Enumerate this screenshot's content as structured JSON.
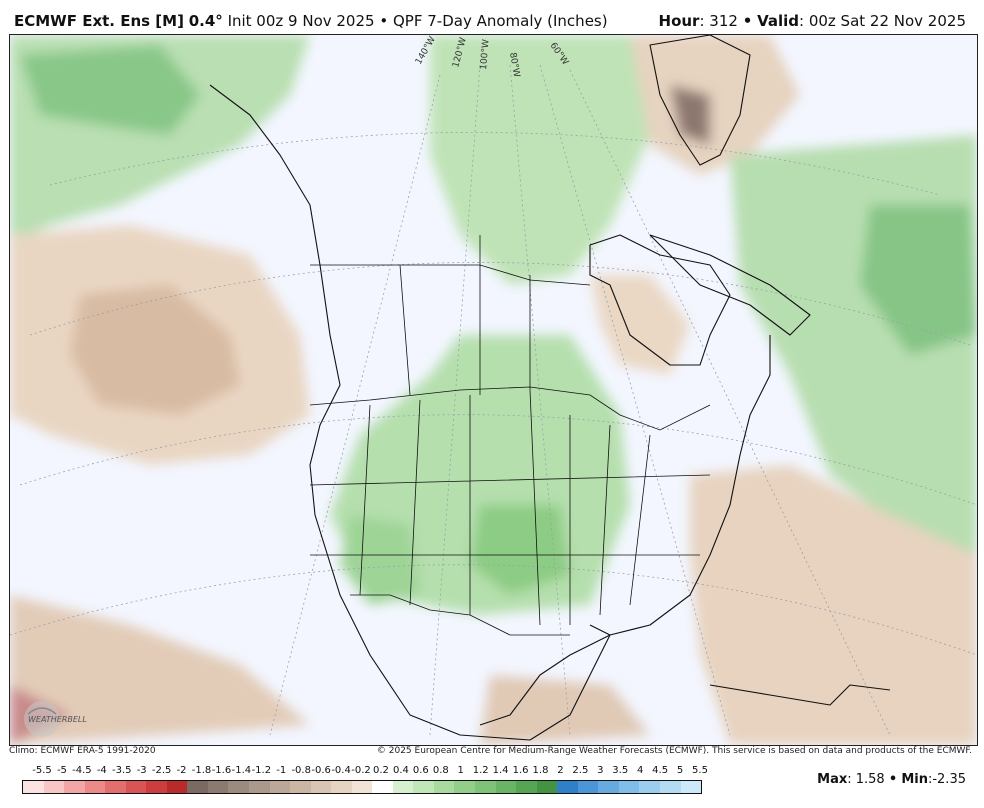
{
  "header": {
    "model": "ECMWF Ext. Ens [M]",
    "resolution": "0.4°",
    "init": "Init 00z 9 Nov 2025",
    "bullet": "•",
    "product": "QPF 7-Day Anomaly (Inches)",
    "hour_label": "Hour",
    "hour_value": ": 312",
    "valid_label": "Valid",
    "valid_value": ": 00z Sat 22 Nov 2025"
  },
  "map": {
    "longitude_labels": [
      "140°W",
      "120°W",
      "100°W",
      "80°W",
      "60°W"
    ],
    "logo_text": "WEATHERBELL",
    "anomaly_regions": [
      {
        "region": "Greenland southern tip",
        "anomaly": "-2.35"
      },
      {
        "region": "Central Plains / Oklahoma",
        "anomaly": "0.8 to 1.2"
      },
      {
        "region": "Central North Atlantic",
        "anomaly": "0.6 to 1.4"
      },
      {
        "region": "Northeast Pacific",
        "anomaly": "-0.4 to -1.0"
      },
      {
        "region": "Western Atlantic off Southeast US",
        "anomaly": "-0.4 to -0.8"
      }
    ]
  },
  "footer": {
    "climo": "Climo: ECMWF ERA-5 1991-2020",
    "copyright": "© 2025 European Centre for Medium-Range Weather Forecasts (ECMWF). This service is based on data and products of the ECMWF."
  },
  "legend": {
    "labels": [
      "-5.5",
      "-5",
      "-4.5",
      "-4",
      "-3.5",
      "-3",
      "-2.5",
      "-2",
      "-1.8",
      "-1.6",
      "-1.4",
      "-1.2",
      "-1",
      "-0.8",
      "-0.6",
      "-0.4",
      "-0.2",
      "0.2",
      "0.4",
      "0.6",
      "0.8",
      "1",
      "1.2",
      "1.4",
      "1.6",
      "1.8",
      "2",
      "2.5",
      "3",
      "3.5",
      "4",
      "4.5",
      "5",
      "5.5"
    ],
    "colors": [
      "#fde2e2",
      "#f9c6c6",
      "#f3a6a6",
      "#ec8a8a",
      "#e26e6e",
      "#d95454",
      "#cc3d3d",
      "#b82b2b",
      "#7a6a62",
      "#8a7a70",
      "#9b8a7e",
      "#ab9a8c",
      "#bba898",
      "#cbb6a4",
      "#d9c5b3",
      "#e6d4c2",
      "#f1e4d6",
      "#ffffff",
      "#d6f0d0",
      "#c1e6b8",
      "#a9dba0",
      "#93cf8b",
      "#7fc378",
      "#6ab565",
      "#56a553",
      "#449244",
      "#2f80c9",
      "#4b96d6",
      "#66aae0",
      "#80bde8",
      "#9acdee",
      "#b3dcf3",
      "#cbe9f8"
    ]
  },
  "stats": {
    "max_label": "Max",
    "max_value": ": 1.58",
    "bullet": "•",
    "min_label": "Min",
    "min_value": ":-2.35"
  }
}
